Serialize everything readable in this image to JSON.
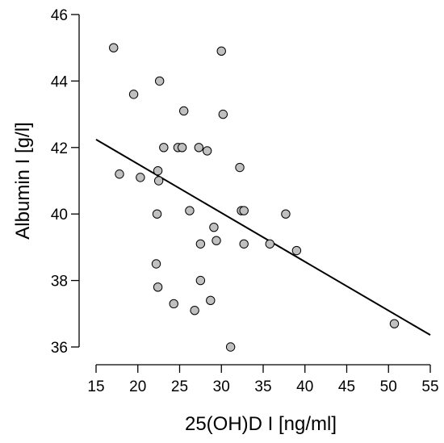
{
  "chart_data": {
    "type": "scatter",
    "title": "",
    "xlabel": "25(OH)D I [ng/ml]",
    "ylabel": "Albumin I [g/l]",
    "xlim": [
      15,
      55
    ],
    "ylim": [
      36,
      46
    ],
    "xticks": [
      15,
      20,
      25,
      30,
      35,
      40,
      45,
      50,
      55
    ],
    "yticks": [
      36,
      38,
      40,
      42,
      44,
      46
    ],
    "grid": false,
    "colors": {
      "point_fill": "#c0c0c0",
      "point_stroke": "#000000",
      "line": "#000000",
      "axis": "#000000"
    },
    "points": [
      {
        "x": 17.1,
        "y": 45.0
      },
      {
        "x": 17.8,
        "y": 41.2
      },
      {
        "x": 19.5,
        "y": 43.6
      },
      {
        "x": 20.3,
        "y": 41.1
      },
      {
        "x": 22.2,
        "y": 38.5
      },
      {
        "x": 22.3,
        "y": 40.0
      },
      {
        "x": 22.4,
        "y": 37.8
      },
      {
        "x": 22.4,
        "y": 41.3
      },
      {
        "x": 22.5,
        "y": 41.0
      },
      {
        "x": 22.6,
        "y": 44.0
      },
      {
        "x": 23.1,
        "y": 42.0
      },
      {
        "x": 24.3,
        "y": 37.3
      },
      {
        "x": 24.8,
        "y": 42.0
      },
      {
        "x": 25.3,
        "y": 42.0
      },
      {
        "x": 25.5,
        "y": 43.1
      },
      {
        "x": 26.2,
        "y": 40.1
      },
      {
        "x": 26.8,
        "y": 37.1
      },
      {
        "x": 27.3,
        "y": 42.0
      },
      {
        "x": 27.5,
        "y": 39.1
      },
      {
        "x": 27.5,
        "y": 38.0
      },
      {
        "x": 28.3,
        "y": 41.9
      },
      {
        "x": 28.7,
        "y": 37.4
      },
      {
        "x": 29.1,
        "y": 39.6
      },
      {
        "x": 29.4,
        "y": 39.2
      },
      {
        "x": 30.0,
        "y": 44.9
      },
      {
        "x": 30.2,
        "y": 43.0
      },
      {
        "x": 31.1,
        "y": 36.0
      },
      {
        "x": 32.2,
        "y": 41.4
      },
      {
        "x": 32.4,
        "y": 40.1
      },
      {
        "x": 32.7,
        "y": 40.1
      },
      {
        "x": 32.7,
        "y": 39.1
      },
      {
        "x": 35.8,
        "y": 39.1
      },
      {
        "x": 37.7,
        "y": 40.0
      },
      {
        "x": 39.0,
        "y": 38.9
      },
      {
        "x": 50.7,
        "y": 36.7
      }
    ],
    "regression_line": {
      "x": [
        15,
        55
      ],
      "y": [
        42.24,
        36.36
      ]
    }
  }
}
